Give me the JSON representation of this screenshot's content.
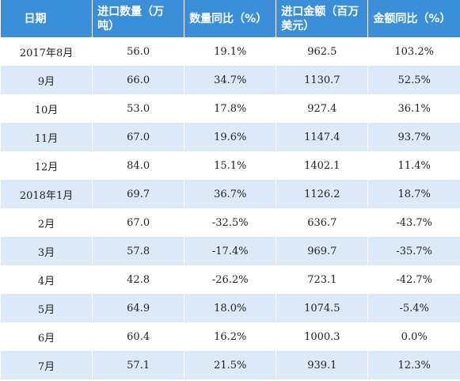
{
  "table": {
    "header": [
      "日期",
      "进口数量（万吨）",
      "数量同比（%）",
      "进口金额（百万美元）",
      "金额同比（%）"
    ],
    "rows": [
      [
        "2017年8月",
        "56.0",
        "19.1%",
        "962.5",
        "103.2%"
      ],
      [
        "9月",
        "66.0",
        "34.7%",
        "1130.7",
        "52.5%"
      ],
      [
        "10月",
        "53.0",
        "17.8%",
        "927.4",
        "36.1%"
      ],
      [
        "11月",
        "67.0",
        "19.6%",
        "1147.4",
        "93.7%"
      ],
      [
        "12月",
        "84.0",
        "15.1%",
        "1402.1",
        "11.4%"
      ],
      [
        "2018年1月",
        "69.7",
        "36.7%",
        "1126.2",
        "18.7%"
      ],
      [
        "2月",
        "67.0",
        "-32.5%",
        "636.7",
        "-43.7%"
      ],
      [
        "3月",
        "57.8",
        "-17.4%",
        "969.7",
        "-35.7%"
      ],
      [
        "4月",
        "42.8",
        "-26.2%",
        "723.1",
        "-42.7%"
      ],
      [
        "5月",
        "64.9",
        "18.0%",
        "1074.5",
        "-5.4%"
      ],
      [
        "6月",
        "60.4",
        "16.2%",
        "1000.3",
        "0.0%"
      ],
      [
        "7月",
        "57.1",
        "21.5%",
        "939.1",
        "12.3%"
      ]
    ]
  }
}
